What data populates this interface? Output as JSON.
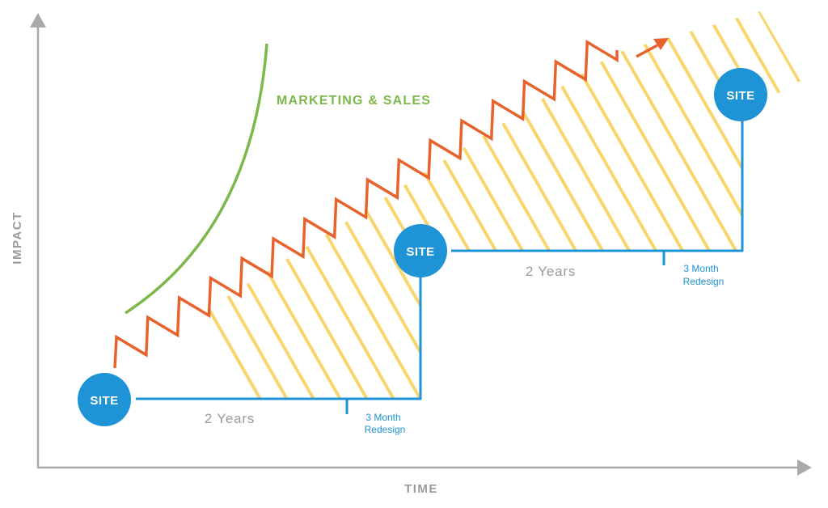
{
  "axes": {
    "y_label": "IMPACT",
    "x_label": "TIME"
  },
  "curve_label": "MARKETING & SALES",
  "sites": [
    {
      "label": "SITE"
    },
    {
      "label": "SITE"
    },
    {
      "label": "SITE"
    }
  ],
  "cycles": [
    {
      "duration": "2 Years",
      "redesign_line1": "3 Month",
      "redesign_line2": "Redesign"
    },
    {
      "duration": "2 Years",
      "redesign_line1": "3 Month",
      "redesign_line2": "Redesign"
    }
  ],
  "colors": {
    "axis": "#a9a9a9",
    "axis_text": "#9a9a9a",
    "site_blue": "#1e93d6",
    "marketing_green": "#7cb84a",
    "growth_orange": "#e8622b",
    "hatch_yellow": "#f9d56e",
    "years_gray": "#9a9a9a"
  }
}
